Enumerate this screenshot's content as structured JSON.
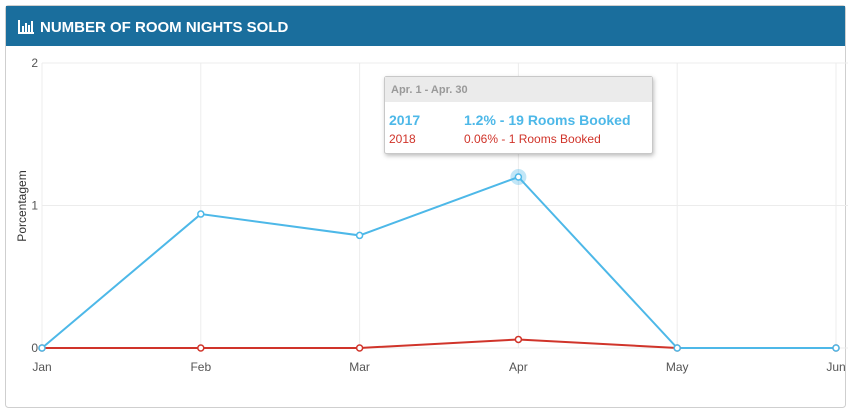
{
  "chart_data": {
    "type": "line",
    "title": "NUMBER OF ROOM NIGHTS SOLD",
    "ylabel": "Porcentagem",
    "categories": [
      "Jan",
      "Feb",
      "Mar",
      "Apr",
      "May",
      "Jun"
    ],
    "series": [
      {
        "name": "2017",
        "color": "#4db8e8",
        "values": [
          0,
          0.94,
          0.79,
          1.2,
          0,
          0
        ]
      },
      {
        "name": "2018",
        "color": "#d0342a",
        "values": [
          0,
          0,
          0,
          0.06,
          0,
          0
        ]
      }
    ],
    "ylim": [
      0,
      2
    ],
    "yticks": [
      0,
      1,
      2
    ],
    "grid": true,
    "tooltip": {
      "header": "Apr. 1 - Apr. 30",
      "rows": [
        {
          "series": "2017",
          "text": "1.2% - 19 Rooms Booked"
        },
        {
          "series": "2018",
          "text": "0.06% - 1 Rooms Booked"
        }
      ]
    }
  }
}
